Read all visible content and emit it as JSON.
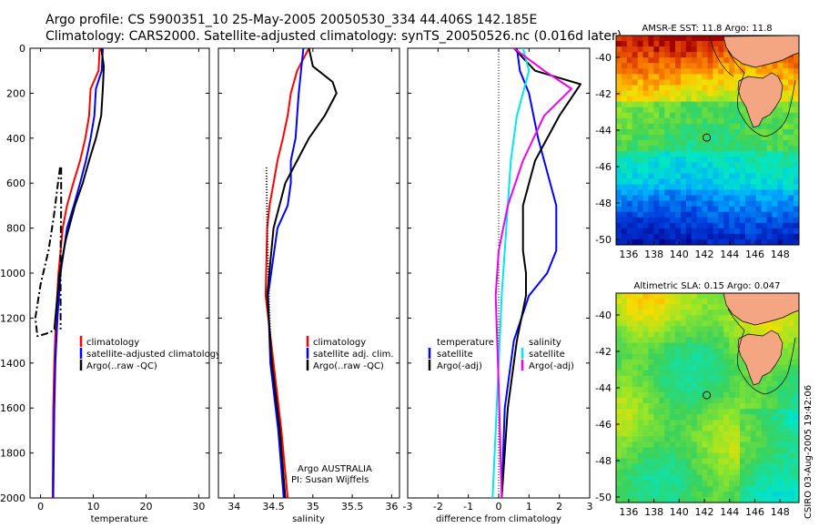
{
  "title_line1": "Argo profile: CS 5900351_10 25-May-2005 20050530_334 44.406S 142.185E",
  "title_line2": "Climatology: CARS2000. Satellite-adjusted climatology: synTS_20050526.nc (0.016d later)",
  "credit": "CSIRO 03-Aug-2005 19:42:06",
  "colors": {
    "climatology": "#ff0000",
    "satellite": "#0000ff",
    "argo": "#000000",
    "cyan": "#00e5ee",
    "magenta": "#ee00ee",
    "land": "#f4a582"
  },
  "chart_data": [
    {
      "type": "line",
      "name": "temperature-profile",
      "xlabel": "temperature",
      "ylabel": "",
      "xlim": [
        -2,
        32
      ],
      "ylim": [
        2000,
        0
      ],
      "xticks": [
        "0",
        "10",
        "20",
        "30"
      ],
      "xtick_values": [
        0,
        10,
        20,
        30
      ],
      "yticks": [
        "0",
        "200",
        "400",
        "600",
        "800",
        "1000",
        "1200",
        "1400",
        "1600",
        "1800",
        "2000"
      ],
      "ytick_values": [
        0,
        200,
        400,
        600,
        800,
        1000,
        1200,
        1400,
        1600,
        1800,
        2000
      ],
      "legend": [
        "climatology",
        "satellite-adjusted climatology",
        "Argo(..raw -QC)"
      ],
      "series": [
        {
          "name": "climatology",
          "color": "#ff0000",
          "dash": "",
          "x": [
            11.2,
            11.0,
            9.5,
            9.2,
            8.5,
            7.5,
            6.2,
            5.0,
            4.2,
            3.4,
            2.9,
            2.6,
            2.4,
            2.3
          ],
          "y": [
            0,
            100,
            180,
            300,
            400,
            500,
            600,
            700,
            800,
            1000,
            1200,
            1400,
            1600,
            2000
          ]
        },
        {
          "name": "satellite-adjusted climatology",
          "color": "#0000ff",
          "dash": "",
          "x": [
            11.8,
            11.6,
            10.5,
            10.2,
            9.5,
            8.6,
            7.5,
            6.3,
            5.0,
            3.8,
            3.2,
            2.8,
            2.6,
            2.4
          ],
          "y": [
            0,
            100,
            180,
            300,
            400,
            500,
            600,
            700,
            800,
            1000,
            1200,
            1400,
            1600,
            2000
          ]
        },
        {
          "name": "Argo",
          "color": "#000000",
          "dash": "",
          "x": [
            11.5,
            12.0,
            11.8,
            11.5,
            10.5,
            9.2,
            8.0,
            6.5,
            4.8,
            3.6,
            3.0,
            2.6
          ],
          "y": [
            0,
            80,
            180,
            300,
            400,
            500,
            600,
            700,
            850,
            1000,
            1150,
            1250
          ]
        },
        {
          "name": "Argo raw",
          "color": "#000000",
          "dash": "8,3,2,3",
          "x": [
            3.7,
            3.3,
            2.5,
            1.5,
            0.0,
            -1.0,
            -0.6,
            1.0,
            3.0
          ],
          "y": [
            530,
            600,
            750,
            900,
            1050,
            1200,
            1280,
            1270,
            1250
          ]
        },
        {
          "name": "Argo raw QC",
          "color": "#000000",
          "dash": "8,3,2,3",
          "x": [
            3.9,
            3.9,
            3.8,
            3.8,
            3.8
          ],
          "y": [
            530,
            700,
            900,
            1100,
            1250
          ]
        }
      ]
    },
    {
      "type": "line",
      "name": "salinity-profile",
      "xlabel": "salinity",
      "xlim": [
        33.8,
        36.1
      ],
      "ylim": [
        2000,
        0
      ],
      "xticks": [
        "34",
        "34.5",
        "35",
        "35.5",
        "36"
      ],
      "xtick_values": [
        34,
        34.5,
        35,
        35.5,
        36
      ],
      "legend": [
        "climatology",
        "satellite adj. clim.",
        "Argo(..raw -QC)"
      ],
      "annotations": [
        "Argo AUSTRALIA",
        "PI: Susan Wijffels"
      ],
      "series": [
        {
          "name": "climatology",
          "color": "#ff0000",
          "dash": "",
          "x": [
            34.95,
            34.8,
            34.72,
            34.68,
            34.62,
            34.55,
            34.5,
            34.45,
            34.42,
            34.4,
            34.5,
            34.6,
            34.68
          ],
          "y": [
            0,
            100,
            200,
            300,
            400,
            500,
            600,
            700,
            800,
            1100,
            1400,
            1700,
            2000
          ]
        },
        {
          "name": "satellite adj. clim.",
          "color": "#0000ff",
          "dash": "",
          "x": [
            34.88,
            34.85,
            34.82,
            34.8,
            34.78,
            34.72,
            34.72,
            34.68,
            34.55,
            34.43,
            34.46,
            34.56,
            34.63
          ],
          "y": [
            0,
            100,
            200,
            300,
            400,
            500,
            600,
            700,
            800,
            1100,
            1400,
            1700,
            2000
          ]
        },
        {
          "name": "Argo",
          "color": "#000000",
          "dash": "",
          "x": [
            34.95,
            35.0,
            35.25,
            35.3,
            35.15,
            34.95,
            34.8,
            34.65,
            34.5,
            34.42,
            34.48,
            34.58,
            34.65
          ],
          "y": [
            0,
            80,
            150,
            200,
            300,
            400,
            500,
            600,
            800,
            1100,
            1400,
            1700,
            2000
          ]
        },
        {
          "name": "Argo raw",
          "color": "#000000",
          "dash": "1,2",
          "x": [
            34.41,
            34.42,
            34.44,
            34.46,
            34.48
          ],
          "y": [
            530,
            800,
            1100,
            1300,
            1450
          ]
        }
      ]
    },
    {
      "type": "line",
      "name": "difference-profile",
      "xlabel": "difference from climatology",
      "xlim": [
        -3,
        3
      ],
      "ylim": [
        2000,
        0
      ],
      "xticks": [
        "-3",
        "-2",
        "-1",
        "0",
        "1",
        "2",
        "3"
      ],
      "xtick_values": [
        -3,
        -2,
        -1,
        0,
        1,
        2,
        3
      ],
      "legend_left_title": "temperature",
      "legend_left": [
        "satellite",
        "Argo(-adj)"
      ],
      "legend_right_title": "salinity",
      "legend_right": [
        "satellite",
        "Argo(-adj)"
      ],
      "series": [
        {
          "name": "temperature satellite",
          "color": "#0000ff",
          "dash": "",
          "x": [
            0.6,
            0.7,
            1.0,
            1.3,
            1.6,
            1.9,
            1.9,
            1.6,
            1.0,
            0.5,
            0.2,
            0.1
          ],
          "y": [
            0,
            100,
            200,
            400,
            550,
            700,
            900,
            1000,
            1100,
            1300,
            1600,
            2000
          ]
        },
        {
          "name": "temperature Argo(-adj)",
          "color": "#000000",
          "dash": "",
          "x": [
            0.5,
            1.2,
            2.7,
            2.0,
            1.2,
            0.8,
            0.8,
            0.9,
            0.9,
            0.6,
            0.3,
            0.1
          ],
          "y": [
            0,
            100,
            160,
            300,
            500,
            700,
            900,
            1000,
            1100,
            1300,
            1600,
            2000
          ]
        },
        {
          "name": "salinity satellite",
          "color": "#00e5ee",
          "dash": "",
          "x": [
            0.8,
            1.0,
            0.6,
            0.4,
            0.3,
            0.2,
            0.1,
            0.0,
            -0.1,
            -0.2
          ],
          "y": [
            0,
            100,
            300,
            500,
            700,
            900,
            1100,
            1400,
            1700,
            2000
          ]
        },
        {
          "name": "salinity Argo(-adj)",
          "color": "#ee00ee",
          "dash": "",
          "x": [
            0.5,
            1.5,
            2.4,
            1.5,
            0.8,
            0.3,
            0.0,
            -0.1,
            0.0,
            0.1
          ],
          "y": [
            0,
            100,
            180,
            300,
            500,
            700,
            900,
            1100,
            1500,
            2000
          ]
        }
      ]
    },
    {
      "type": "heatmap",
      "name": "sst-map",
      "title": "AMSR-E SST: 11.8 Argo: 11.8",
      "xlim": [
        135,
        149.5
      ],
      "ylim": [
        -50.3,
        -38.8
      ],
      "xticks": [
        "136",
        "138",
        "140",
        "142",
        "144",
        "146",
        "148"
      ],
      "xtick_values": [
        136,
        138,
        140,
        142,
        144,
        146,
        148
      ],
      "yticks": [
        "-40",
        "-42",
        "-44",
        "-46",
        "-48",
        "-50"
      ],
      "ytick_values": [
        -40,
        -42,
        -44,
        -46,
        -48,
        -50
      ],
      "float_position": {
        "lon": 142.185,
        "lat": -44.406
      }
    },
    {
      "type": "heatmap",
      "name": "sla-map",
      "title": "Altimetric SLA: 0.15 Argo: 0.047",
      "xlim": [
        135,
        149.5
      ],
      "ylim": [
        -50.3,
        -38.8
      ],
      "xticks": [
        "136",
        "138",
        "140",
        "142",
        "144",
        "146",
        "148"
      ],
      "xtick_values": [
        136,
        138,
        140,
        142,
        144,
        146,
        148
      ],
      "yticks": [
        "-40",
        "-42",
        "-44",
        "-46",
        "-48",
        "-50"
      ],
      "ytick_values": [
        -40,
        -42,
        -44,
        -46,
        -48,
        -50
      ],
      "float_position": {
        "lon": 142.185,
        "lat": -44.406
      }
    }
  ]
}
